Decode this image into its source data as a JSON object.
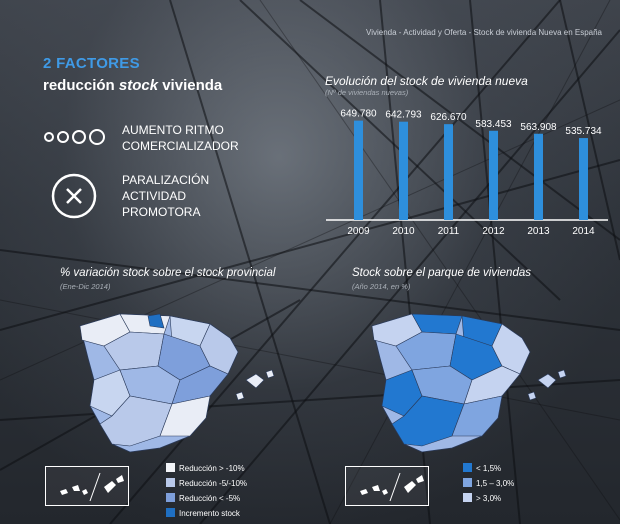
{
  "breadcrumb": "Vivienda - Actividad y Oferta - Stock de vivienda Nueva en España",
  "headline": {
    "line1": "2 FACTORES",
    "line2_before": "reducción ",
    "line2_emph": "stock",
    "line2_after": " vivienda"
  },
  "factors": [
    {
      "icon": "growing-circles-icon",
      "line1": "AUMENTO RITMO",
      "line2": "COMERCIALIZADOR"
    },
    {
      "icon": "x-circle-icon",
      "line1": "PARALIZACIÓN",
      "line2": "ACTIVIDAD",
      "line3": "PROMOTORA"
    }
  ],
  "chart": {
    "title": "Evolución del stock de vivienda nueva",
    "subtitle": "(Nº de viviendas nuevas)"
  },
  "chart_data": {
    "type": "bar",
    "categories": [
      "2009",
      "2010",
      "2011",
      "2012",
      "2013",
      "2014"
    ],
    "values": [
      649780,
      642793,
      626670,
      583453,
      563908,
      535734
    ],
    "data_labels": [
      "649.780",
      "642.793",
      "626.670",
      "583.453",
      "563.908",
      "535.734"
    ],
    "title": "Evolución del stock de vivienda nueva",
    "subtitle": "(Nº de viviendas nuevas)",
    "ylim": [
      0,
      680000
    ],
    "bar_color": "#2e8fdc"
  },
  "map_left": {
    "title": "% variación stock sobre el stock provincial",
    "subtitle": "(Ene-Dic 2014)",
    "legend": [
      {
        "label": "Reducción > -10%",
        "color": "#f2f4f8"
      },
      {
        "label": "Reducción -5/-10%",
        "color": "#b9c9ea"
      },
      {
        "label": "Reducción < -5%",
        "color": "#7e9fdb"
      },
      {
        "label": "Incremento stock",
        "color": "#1f6fc2"
      }
    ]
  },
  "map_right": {
    "title": "Stock sobre el parque de viviendas",
    "subtitle": "(Año 2014, en %)",
    "legend": [
      {
        "label": "< 1,5%",
        "color": "#2278d0"
      },
      {
        "label": "1,5 – 3,0%",
        "color": "#7fa5e0"
      },
      {
        "label": "> 3,0%",
        "color": "#c5d3f0"
      }
    ]
  },
  "colors": {
    "accent": "#3f9ae6",
    "bar": "#2e8fdc"
  }
}
